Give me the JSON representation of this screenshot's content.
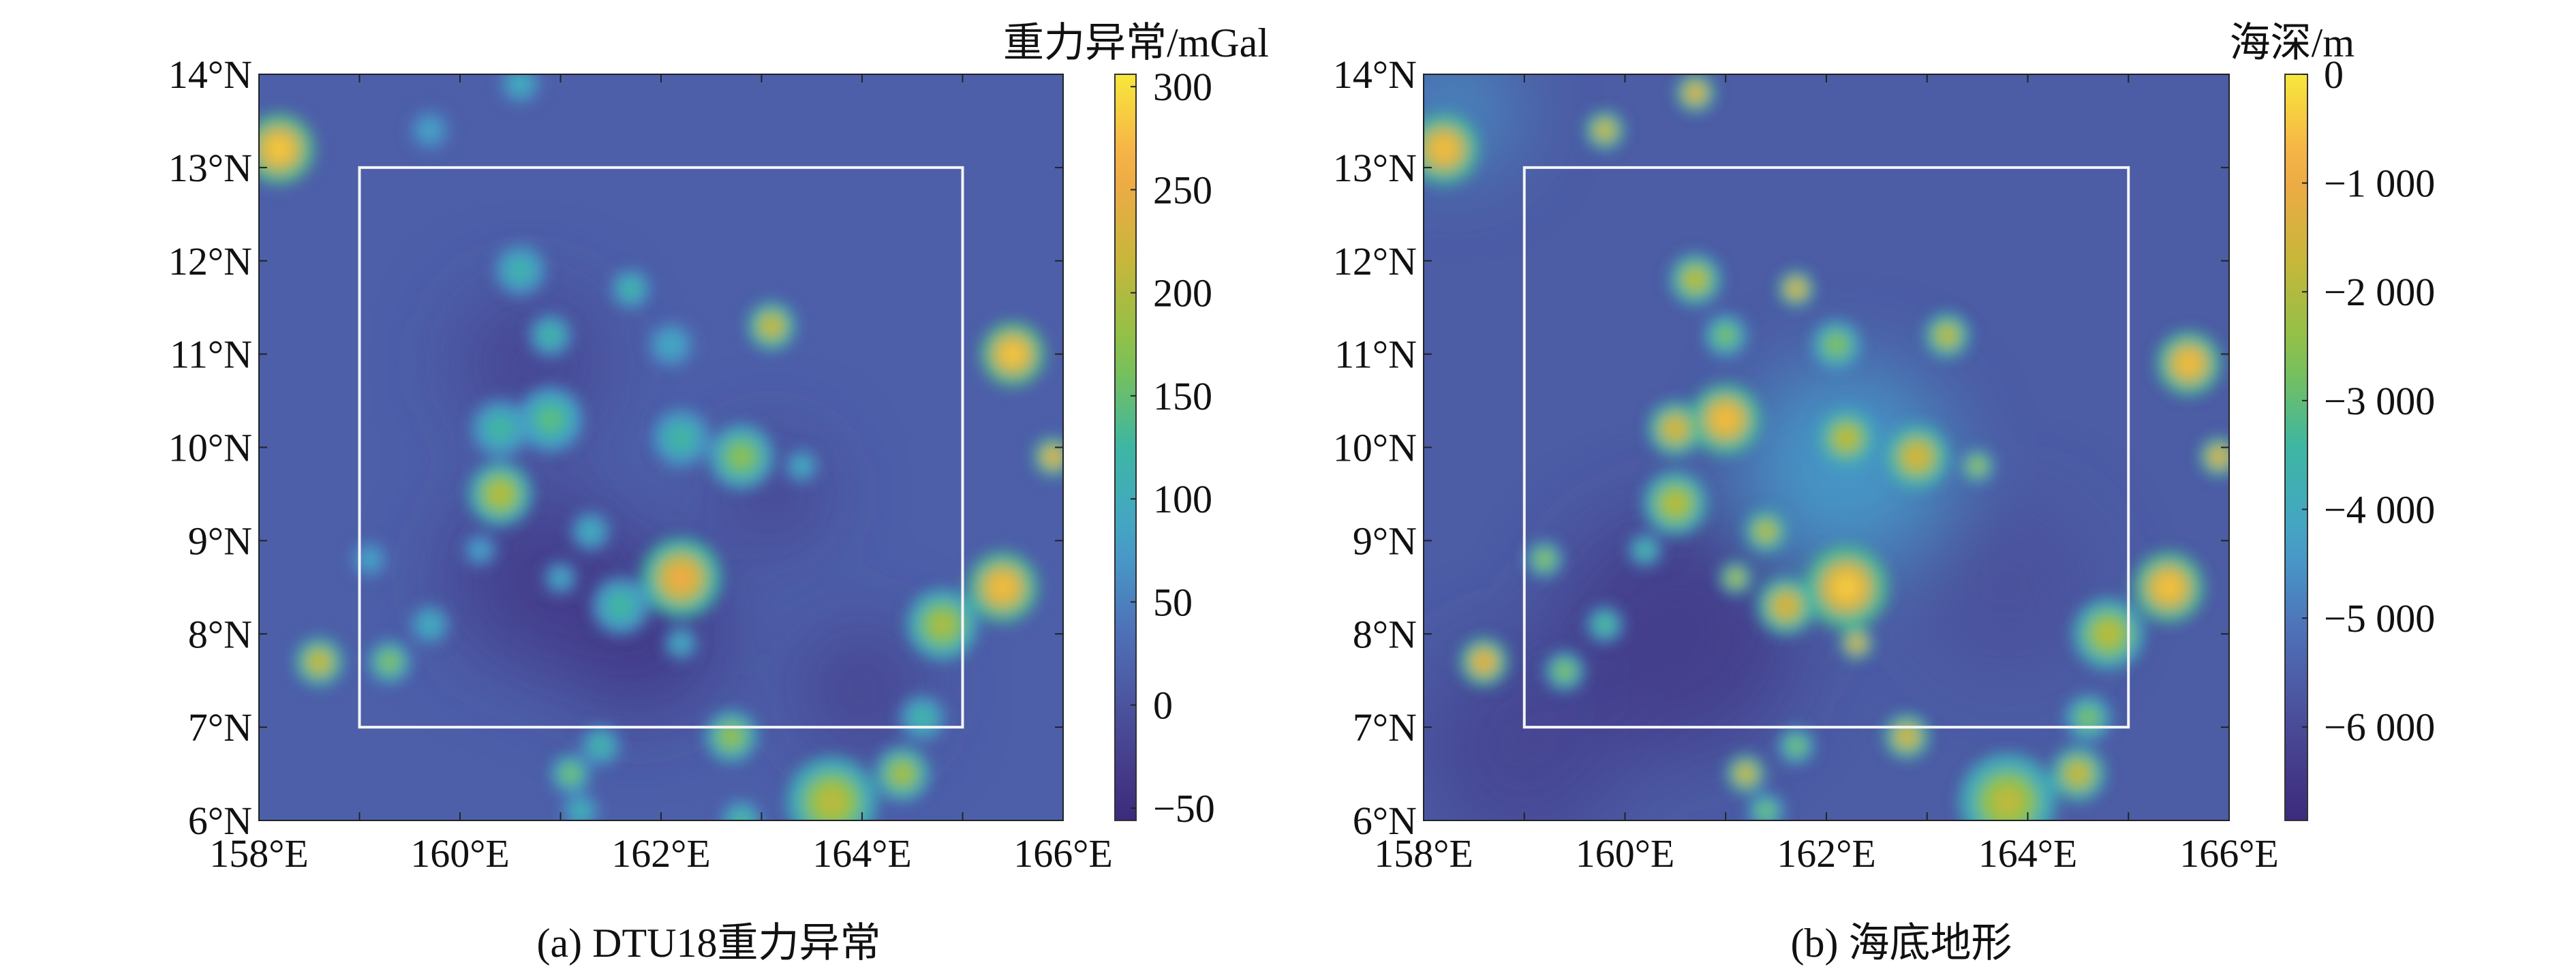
{
  "chart_data": [
    {
      "type": "heatmap",
      "panel": "a",
      "caption": "(a) DTU18重力异常",
      "colorbar_title": "重力异常/mGal",
      "colorbar_ticks": [
        "300",
        "250",
        "200",
        "150",
        "100",
        "50",
        "0",
        "−50"
      ],
      "colorbar_tick_values": [
        300,
        250,
        200,
        150,
        100,
        50,
        0,
        -50
      ],
      "value_range": [
        -56,
        306
      ],
      "xlim": [
        158,
        166
      ],
      "ylim": [
        6,
        14
      ],
      "x_ticks": [
        "158°E",
        "160°E",
        "162°E",
        "164°E",
        "166°E"
      ],
      "x_tick_values": [
        158,
        160,
        162,
        164,
        166
      ],
      "y_ticks": [
        "14°N",
        "13°N",
        "12°N",
        "11°N",
        "10°N",
        "9°N",
        "8°N",
        "7°N",
        "6°N"
      ],
      "y_tick_values": [
        14,
        13,
        12,
        11,
        10,
        9,
        8,
        7,
        6
      ],
      "background_value": 15,
      "study_area": {
        "lon": [
          159,
          165
        ],
        "lat": [
          7,
          13
        ]
      },
      "lows": [
        {
          "lon": 161.8,
          "lat": 8.0,
          "value": -45,
          "extent": 0.8
        },
        {
          "lon": 160.8,
          "lat": 8.6,
          "value": -35,
          "extent": 0.9
        },
        {
          "lon": 163.1,
          "lat": 9.5,
          "value": -30,
          "extent": 0.5
        },
        {
          "lon": 160.7,
          "lat": 10.9,
          "value": -25,
          "extent": 0.7
        },
        {
          "lon": 164.0,
          "lat": 7.4,
          "value": -30,
          "extent": 0.6
        }
      ],
      "anomalies": [
        {
          "lon": 158.2,
          "lat": 13.2,
          "value": 285,
          "extent": 0.22
        },
        {
          "lon": 159.7,
          "lat": 13.4,
          "value": 90,
          "extent": 0.12
        },
        {
          "lon": 160.6,
          "lat": 13.9,
          "value": 110,
          "extent": 0.12
        },
        {
          "lon": 158.6,
          "lat": 7.7,
          "value": 230,
          "extent": 0.15
        },
        {
          "lon": 159.3,
          "lat": 7.7,
          "value": 180,
          "extent": 0.13
        },
        {
          "lon": 159.7,
          "lat": 8.1,
          "value": 110,
          "extent": 0.12
        },
        {
          "lon": 159.1,
          "lat": 8.8,
          "value": 90,
          "extent": 0.11
        },
        {
          "lon": 160.2,
          "lat": 8.9,
          "value": 90,
          "extent": 0.1
        },
        {
          "lon": 160.4,
          "lat": 9.5,
          "value": 210,
          "extent": 0.2
        },
        {
          "lon": 160.4,
          "lat": 10.2,
          "value": 130,
          "extent": 0.18
        },
        {
          "lon": 160.9,
          "lat": 10.3,
          "value": 150,
          "extent": 0.2
        },
        {
          "lon": 160.6,
          "lat": 11.9,
          "value": 120,
          "extent": 0.16
        },
        {
          "lon": 160.9,
          "lat": 11.2,
          "value": 130,
          "extent": 0.13
        },
        {
          "lon": 161.7,
          "lat": 11.7,
          "value": 130,
          "extent": 0.12
        },
        {
          "lon": 162.1,
          "lat": 11.1,
          "value": 100,
          "extent": 0.14
        },
        {
          "lon": 163.1,
          "lat": 11.3,
          "value": 230,
          "extent": 0.15
        },
        {
          "lon": 162.2,
          "lat": 10.1,
          "value": 130,
          "extent": 0.18
        },
        {
          "lon": 162.8,
          "lat": 9.9,
          "value": 180,
          "extent": 0.2
        },
        {
          "lon": 163.4,
          "lat": 9.8,
          "value": 110,
          "extent": 0.1
        },
        {
          "lon": 162.2,
          "lat": 8.6,
          "value": 260,
          "extent": 0.25
        },
        {
          "lon": 161.6,
          "lat": 8.3,
          "value": 130,
          "extent": 0.18
        },
        {
          "lon": 161.3,
          "lat": 9.1,
          "value": 110,
          "extent": 0.12
        },
        {
          "lon": 161.0,
          "lat": 8.6,
          "value": 100,
          "extent": 0.1
        },
        {
          "lon": 162.2,
          "lat": 7.9,
          "value": 110,
          "extent": 0.1
        },
        {
          "lon": 162.7,
          "lat": 6.9,
          "value": 190,
          "extent": 0.16
        },
        {
          "lon": 161.1,
          "lat": 6.5,
          "value": 170,
          "extent": 0.12
        },
        {
          "lon": 161.4,
          "lat": 6.8,
          "value": 130,
          "extent": 0.12
        },
        {
          "lon": 161.2,
          "lat": 6.1,
          "value": 120,
          "extent": 0.11
        },
        {
          "lon": 163.7,
          "lat": 6.2,
          "value": 210,
          "extent": 0.28
        },
        {
          "lon": 164.4,
          "lat": 6.5,
          "value": 200,
          "extent": 0.17
        },
        {
          "lon": 164.6,
          "lat": 7.1,
          "value": 130,
          "extent": 0.14
        },
        {
          "lon": 164.8,
          "lat": 8.1,
          "value": 200,
          "extent": 0.22
        },
        {
          "lon": 165.4,
          "lat": 8.5,
          "value": 275,
          "extent": 0.22
        },
        {
          "lon": 165.5,
          "lat": 11.0,
          "value": 285,
          "extent": 0.2
        },
        {
          "lon": 165.9,
          "lat": 9.9,
          "value": 255,
          "extent": 0.12
        },
        {
          "lon": 162.8,
          "lat": 6.0,
          "value": 140,
          "extent": 0.12
        }
      ]
    },
    {
      "type": "heatmap",
      "panel": "b",
      "caption": "(b) 海底地形",
      "colorbar_title": "海深/m",
      "colorbar_ticks": [
        "0",
        "−1 000",
        "−2 000",
        "−3 000",
        "−4 000",
        "−5 000",
        "−6 000"
      ],
      "colorbar_tick_values": [
        0,
        -1000,
        -2000,
        -3000,
        -4000,
        -5000,
        -6000
      ],
      "value_range": [
        -6860,
        0
      ],
      "xlim": [
        158,
        166
      ],
      "ylim": [
        6,
        14
      ],
      "x_ticks": [
        "158°E",
        "160°E",
        "162°E",
        "164°E",
        "166°E"
      ],
      "x_tick_values": [
        158,
        160,
        162,
        164,
        166
      ],
      "y_ticks": [
        "14°N",
        "13°N",
        "12°N",
        "11°N",
        "10°N",
        "9°N",
        "8°N",
        "7°N",
        "6°N"
      ],
      "y_tick_values": [
        14,
        13,
        12,
        11,
        10,
        9,
        8,
        7,
        6
      ],
      "background_value": -5600,
      "study_area": {
        "lon": [
          159,
          165
        ],
        "lat": [
          7,
          13
        ]
      },
      "lows": [
        {
          "lon": 160.5,
          "lat": 8.0,
          "value": -6500,
          "extent": 1.2
        },
        {
          "lon": 159.0,
          "lat": 6.8,
          "value": -6200,
          "extent": 1.0
        },
        {
          "lon": 163.8,
          "lat": 8.5,
          "value": -5900,
          "extent": 0.8
        }
      ],
      "highs": [
        {
          "lon": 162.2,
          "lat": 9.8,
          "value": -4300,
          "extent": 1.0
        },
        {
          "lon": 158.3,
          "lat": 13.6,
          "value": -4500,
          "extent": 0.6
        }
      ],
      "anomalies": [
        {
          "lon": 158.2,
          "lat": 13.2,
          "value": -600,
          "extent": 0.22
        },
        {
          "lon": 159.8,
          "lat": 13.4,
          "value": -1300,
          "extent": 0.12
        },
        {
          "lon": 160.7,
          "lat": 13.8,
          "value": -1000,
          "extent": 0.12
        },
        {
          "lon": 158.6,
          "lat": 7.7,
          "value": -900,
          "extent": 0.15
        },
        {
          "lon": 159.4,
          "lat": 7.6,
          "value": -2400,
          "extent": 0.12
        },
        {
          "lon": 159.8,
          "lat": 8.1,
          "value": -3000,
          "extent": 0.11
        },
        {
          "lon": 159.2,
          "lat": 8.8,
          "value": -2200,
          "extent": 0.11
        },
        {
          "lon": 160.2,
          "lat": 8.9,
          "value": -3200,
          "extent": 0.1
        },
        {
          "lon": 160.5,
          "lat": 9.4,
          "value": -1800,
          "extent": 0.2
        },
        {
          "lon": 160.5,
          "lat": 10.2,
          "value": -1200,
          "extent": 0.17
        },
        {
          "lon": 161.0,
          "lat": 10.3,
          "value": -600,
          "extent": 0.22
        },
        {
          "lon": 160.7,
          "lat": 11.8,
          "value": -1700,
          "extent": 0.16
        },
        {
          "lon": 161.0,
          "lat": 11.2,
          "value": -2500,
          "extent": 0.13
        },
        {
          "lon": 161.7,
          "lat": 11.7,
          "value": -1000,
          "extent": 0.11
        },
        {
          "lon": 162.1,
          "lat": 11.1,
          "value": -2400,
          "extent": 0.15
        },
        {
          "lon": 163.2,
          "lat": 11.2,
          "value": -1600,
          "extent": 0.14
        },
        {
          "lon": 162.2,
          "lat": 10.1,
          "value": -1700,
          "extent": 0.18
        },
        {
          "lon": 162.9,
          "lat": 9.9,
          "value": -1300,
          "extent": 0.2
        },
        {
          "lon": 163.5,
          "lat": 9.8,
          "value": -2000,
          "extent": 0.1
        },
        {
          "lon": 162.2,
          "lat": 8.5,
          "value": -400,
          "extent": 0.26
        },
        {
          "lon": 161.6,
          "lat": 8.3,
          "value": -1200,
          "extent": 0.18
        },
        {
          "lon": 161.4,
          "lat": 9.1,
          "value": -1700,
          "extent": 0.13
        },
        {
          "lon": 161.1,
          "lat": 8.6,
          "value": -1800,
          "extent": 0.1
        },
        {
          "lon": 162.3,
          "lat": 7.9,
          "value": -1000,
          "extent": 0.1
        },
        {
          "lon": 162.8,
          "lat": 6.9,
          "value": -1200,
          "extent": 0.14
        },
        {
          "lon": 161.2,
          "lat": 6.5,
          "value": -1300,
          "extent": 0.12
        },
        {
          "lon": 161.7,
          "lat": 6.8,
          "value": -2500,
          "extent": 0.11
        },
        {
          "lon": 161.4,
          "lat": 6.1,
          "value": -2600,
          "extent": 0.11
        },
        {
          "lon": 163.8,
          "lat": 6.2,
          "value": -1800,
          "extent": 0.3
        },
        {
          "lon": 164.5,
          "lat": 6.5,
          "value": -1500,
          "extent": 0.17
        },
        {
          "lon": 164.6,
          "lat": 7.1,
          "value": -2500,
          "extent": 0.14
        },
        {
          "lon": 164.8,
          "lat": 8.0,
          "value": -1800,
          "extent": 0.22
        },
        {
          "lon": 165.4,
          "lat": 8.5,
          "value": -500,
          "extent": 0.22
        },
        {
          "lon": 165.6,
          "lat": 10.9,
          "value": -600,
          "extent": 0.2
        },
        {
          "lon": 165.9,
          "lat": 9.9,
          "value": -1000,
          "extent": 0.12
        }
      ]
    }
  ],
  "colors": {
    "colormap": [
      "#3d2a7c",
      "#4a4b96",
      "#4f6fb7",
      "#46a2cb",
      "#3db6a3",
      "#86c24c",
      "#c7b73a",
      "#f6a848",
      "#f7e83c"
    ],
    "study_area_box": "#f4f4f4",
    "axis": "#222222"
  }
}
